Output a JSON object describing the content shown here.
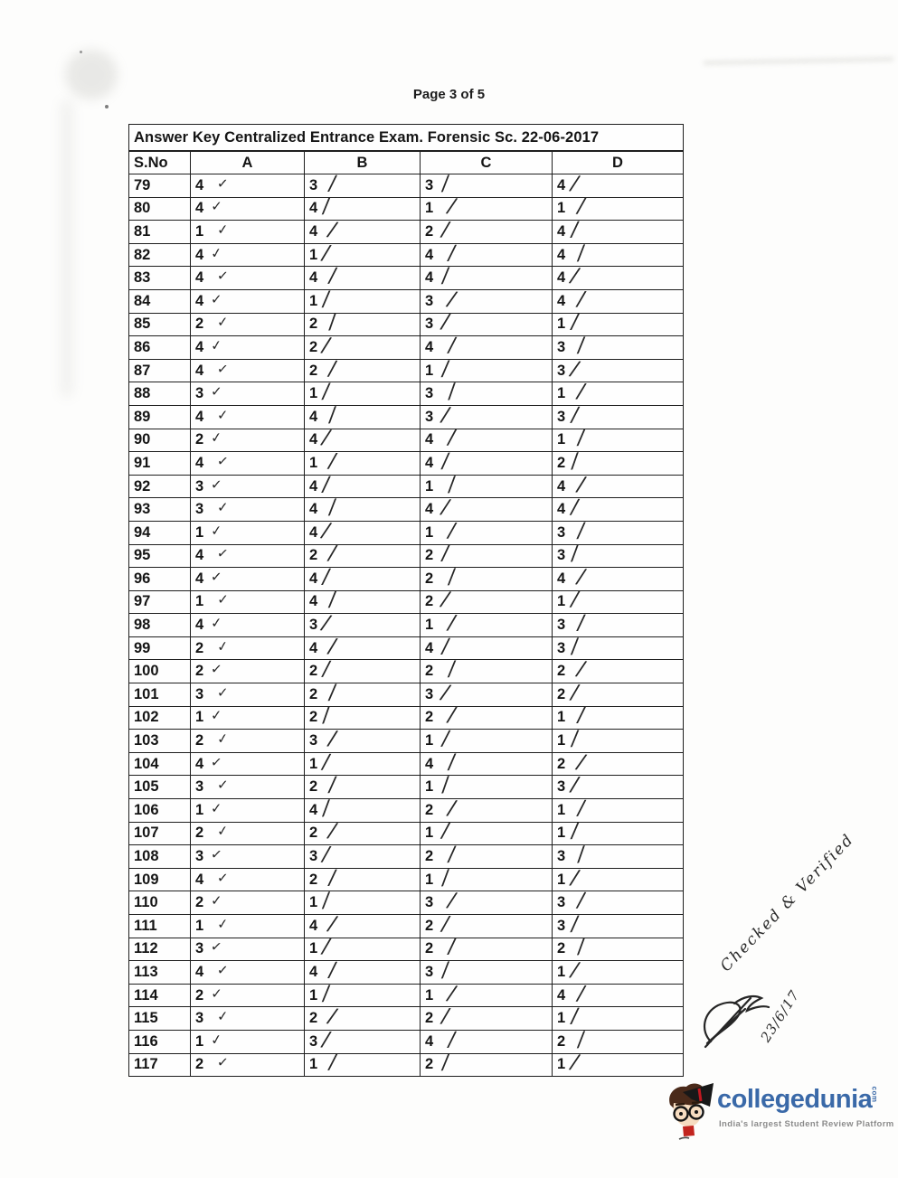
{
  "page_indicator": "Page 3 of 5",
  "table": {
    "title": "Answer Key Centralized Entrance Exam. Forensic Sc. 22-06-2017",
    "columns": [
      "S.No",
      "A",
      "B",
      "C",
      "D"
    ],
    "rows": [
      [
        "79",
        "4",
        "3",
        "3",
        "4"
      ],
      [
        "80",
        "4",
        "4",
        "1",
        "1"
      ],
      [
        "81",
        "1",
        "4",
        "2",
        "4"
      ],
      [
        "82",
        "4",
        "1",
        "4",
        "4"
      ],
      [
        "83",
        "4",
        "4",
        "4",
        "4"
      ],
      [
        "84",
        "4",
        "1",
        "3",
        "4"
      ],
      [
        "85",
        "2",
        "2",
        "3",
        "1"
      ],
      [
        "86",
        "4",
        "2",
        "4",
        "3"
      ],
      [
        "87",
        "4",
        "2",
        "1",
        "3"
      ],
      [
        "88",
        "3",
        "1",
        "3",
        "1"
      ],
      [
        "89",
        "4",
        "4",
        "3",
        "3"
      ],
      [
        "90",
        "2",
        "4",
        "4",
        "1"
      ],
      [
        "91",
        "4",
        "1",
        "4",
        "2"
      ],
      [
        "92",
        "3",
        "4",
        "1",
        "4"
      ],
      [
        "93",
        "3",
        "4",
        "4",
        "4"
      ],
      [
        "94",
        "1",
        "4",
        "1",
        "3"
      ],
      [
        "95",
        "4",
        "2",
        "2",
        "3"
      ],
      [
        "96",
        "4",
        "4",
        "2",
        "4"
      ],
      [
        "97",
        "1",
        "4",
        "2",
        "1"
      ],
      [
        "98",
        "4",
        "3",
        "1",
        "3"
      ],
      [
        "99",
        "2",
        "4",
        "4",
        "3"
      ],
      [
        "100",
        "2",
        "2",
        "2",
        "2"
      ],
      [
        "101",
        "3",
        "2",
        "3",
        "2"
      ],
      [
        "102",
        "1",
        "2",
        "2",
        "1"
      ],
      [
        "103",
        "2",
        "3",
        "1",
        "1"
      ],
      [
        "104",
        "4",
        "1",
        "4",
        "2"
      ],
      [
        "105",
        "3",
        "2",
        "1",
        "3"
      ],
      [
        "106",
        "1",
        "4",
        "2",
        "1"
      ],
      [
        "107",
        "2",
        "2",
        "1",
        "1"
      ],
      [
        "108",
        "3",
        "3",
        "2",
        "3"
      ],
      [
        "109",
        "4",
        "2",
        "1",
        "1"
      ],
      [
        "110",
        "2",
        "1",
        "3",
        "3"
      ],
      [
        "111",
        "1",
        "4",
        "2",
        "3"
      ],
      [
        "112",
        "3",
        "1",
        "2",
        "2"
      ],
      [
        "113",
        "4",
        "4",
        "3",
        "1"
      ],
      [
        "114",
        "2",
        "1",
        "1",
        "4"
      ],
      [
        "115",
        "3",
        "2",
        "2",
        "1"
      ],
      [
        "116",
        "1",
        "3",
        "4",
        "2"
      ],
      [
        "117",
        "2",
        "1",
        "2",
        "1"
      ]
    ]
  },
  "marks": {
    "check": "✓",
    "slash": "╱"
  },
  "annotations": {
    "note": "Checked & Verified",
    "date": "23/6/17"
  },
  "logo": {
    "brand": "collegedunia",
    "tld": "com",
    "tagline": "India's largest Student Review Platform",
    "brand_color": "#3a69a8",
    "tagline_color": "#8b8b8b"
  }
}
